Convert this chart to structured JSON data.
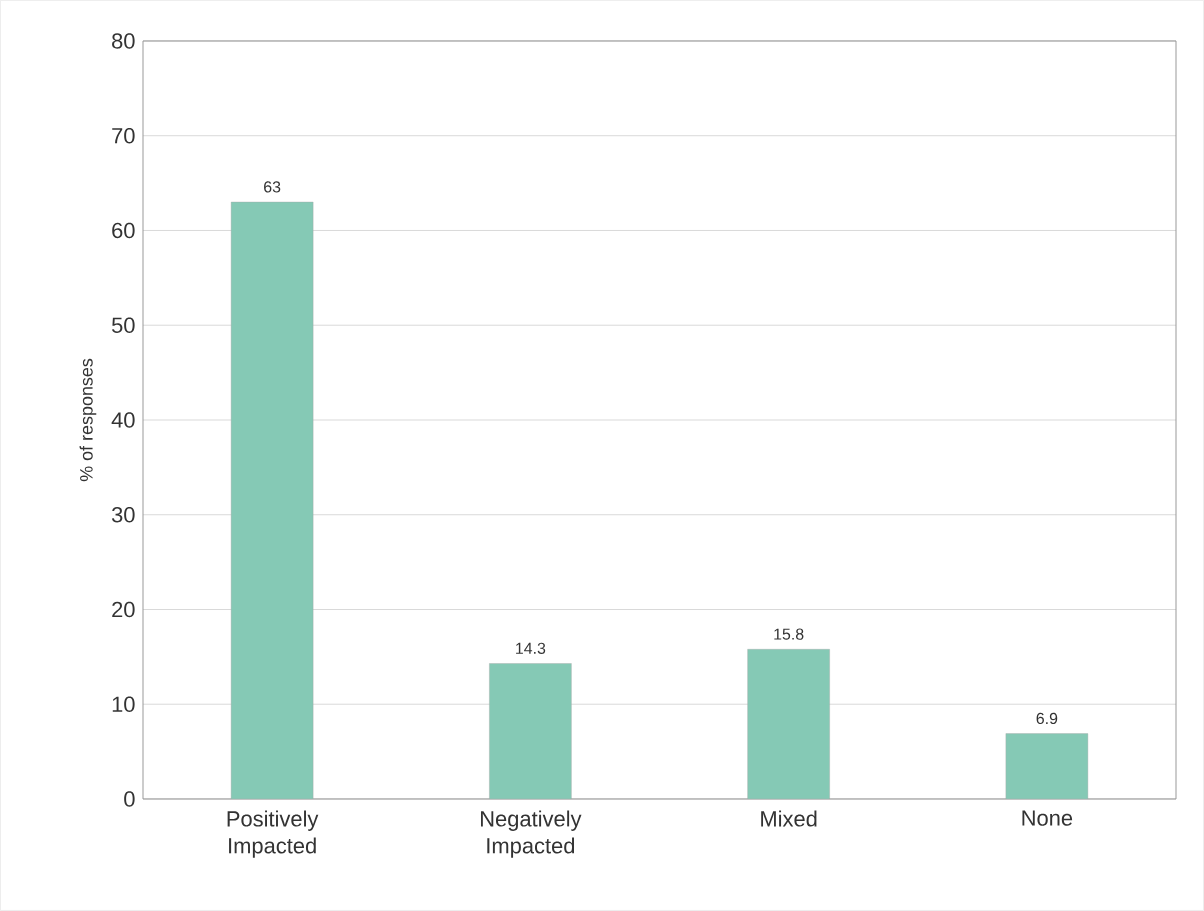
{
  "chart_data": {
    "type": "bar",
    "ylabel": "% of responses",
    "categories": [
      "Positively Impacted",
      "Negatively Impacted",
      "Mixed",
      "None"
    ],
    "values": [
      63,
      14.3,
      15.8,
      6.9
    ],
    "color": "#85c9b5",
    "ylim": [
      0,
      80
    ],
    "yticks": [
      0,
      10,
      20,
      30,
      40,
      50,
      60,
      70,
      80
    ],
    "grid": "y",
    "data_labels": true
  }
}
